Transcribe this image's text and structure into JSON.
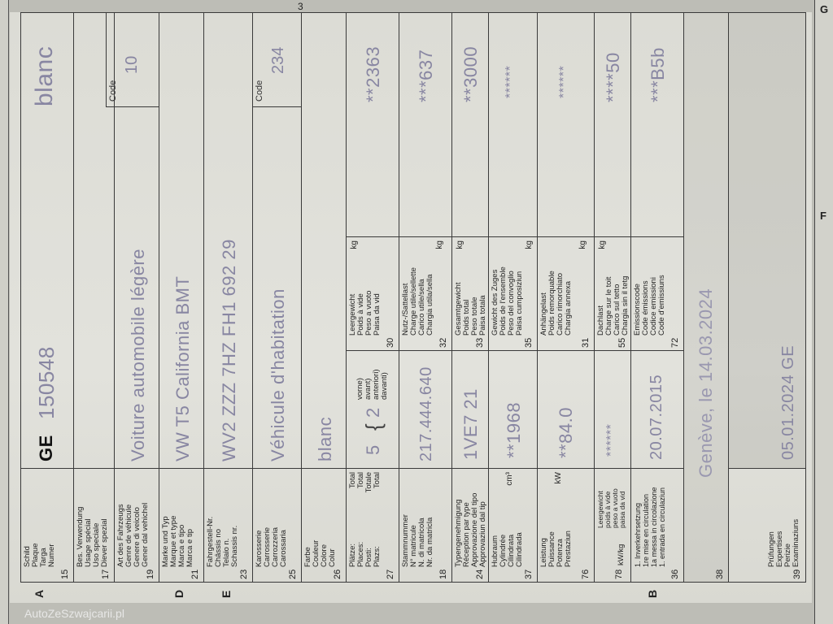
{
  "page_number": "3",
  "next_page_letters": [
    "G",
    "F"
  ],
  "watermark": "AutoZeSzwajcarii.pl",
  "section_letters": {
    "A": "A",
    "D": "D",
    "E": "E",
    "B": "B"
  },
  "rows": {
    "r15": {
      "num": "15",
      "label": "Schild\nPlaque\nTarga\nNumer",
      "canton": "GE",
      "plate": "150548",
      "color_right": "blanc"
    },
    "r17": {
      "num": "17",
      "label": "Bes. Verwendung\nUsage spécial\nUso speciale\nDiever spezial"
    },
    "r19": {
      "num": "19",
      "label": "Art des Fahrzeugs\nGenre de véhicule\nGenere di veicolo\nGener dal vehichel",
      "value": "Voiture automobile légère",
      "code_label": "Code",
      "code": "10"
    },
    "r21": {
      "num": "21",
      "label": "Marke und Typ\nMarque et type\nMarca e tipo\nMarca e tip",
      "value": "VW T5 California BMT"
    },
    "r23": {
      "num": "23",
      "label": "Fahrgestell-Nr.\nChâssis no\nTelaio n.\nSchassis nr.",
      "value": "WV2 ZZZ 7HZ FH1 692 29"
    },
    "r25": {
      "num": "25",
      "label": "Karosserie\nCarrosserie\nCarrozzeria\nCarossaria",
      "value": "Véhicule d'habitation",
      "code_label": "Code",
      "code": "234"
    },
    "r26": {
      "num": "26",
      "label": "Farbe\nCouleur\nColore\nColur",
      "value": "blanc"
    },
    "r27": {
      "num": "27",
      "label": "Plätze:\nPlaces:\nPosti:\nPlazs:",
      "total": "Total\nTotal\nTotale\nTotal",
      "value": "5",
      "front": "2",
      "front_label": "vorne)\navant)\nanteriori)\ndavanti)"
    },
    "r30": {
      "num": "30",
      "label": "Leergewicht\nPoids à vide\nPeso a vuoto\nPaisa da vid",
      "unit": "kg",
      "value": "**2363"
    },
    "r18": {
      "num": "18",
      "label": "Stammnummer\nN° matricule\nN. di matricola\nNr. da matricla",
      "value": "217.444.640"
    },
    "r32": {
      "num": "32",
      "label": "Nutz-/Sattellast\nCharge utile/sellette\nCarico utile/sella\nChargia utila/sella",
      "unit": "kg",
      "value": "***637"
    },
    "r24": {
      "num": "24",
      "label": "Typengenehmigung\nRéception par type\nApprovazione del tipo\nApprovaziun dal tip",
      "value": "1VE7 21"
    },
    "r33": {
      "num": "33",
      "label": "Gesamtgewicht\nPoids total\nPeso totale\nPaisa totala",
      "unit": "kg",
      "value": "**3000"
    },
    "r37": {
      "num": "37",
      "label": "Hubraum\nCylindrée\nCilindrata\nCilindrada",
      "unit": "cm³",
      "value": "**1968"
    },
    "r35": {
      "num": "35",
      "label": "Gewicht des Zuges\nPoids de l'ensemble\nPeso del convoglio\nPaisa cumposiziun",
      "unit": "kg",
      "value": "******"
    },
    "r76": {
      "num": "76",
      "label": "Leistung\nPuissance\nPotenza\nPrestaziun",
      "unit": "kW",
      "value": "**84.0"
    },
    "r31": {
      "num": "31",
      "label": "Anhängelast\nPoids remorquable\nCarico rimorchiato\nChargia annexa",
      "unit": "kg",
      "value": "******"
    },
    "r78": {
      "num": "78",
      "label": "kW/kg",
      "sub": "Leergewicht\npoids à vide\npeso a vuoto\npaisa da vid",
      "value": "******"
    },
    "r55": {
      "num": "55",
      "label": "Dachlast\nCharge sur le toit\nCarico sul tetto\nChargia sin il tetg",
      "unit": "kg",
      "value": "****50"
    },
    "r36": {
      "num": "36",
      "label": "1. Inverkehrsetzung\n1re mise en circulation\n1a messa in circolazione\n1. entrada en circulaziun",
      "value": "20.07.2015"
    },
    "r72": {
      "num": "72",
      "label": "Emissionscode\nCode émissions\nCodice emissioni\nCode d'emissiuns",
      "value": "***B5b"
    },
    "r38": {
      "num": "38",
      "value": "Genève, le 14.03.2024"
    },
    "r39": {
      "num": "39",
      "label": "Prüfungen\nExpertises\nPerizie\nExaminaziuns",
      "value": "05.01.2024 GE"
    }
  }
}
